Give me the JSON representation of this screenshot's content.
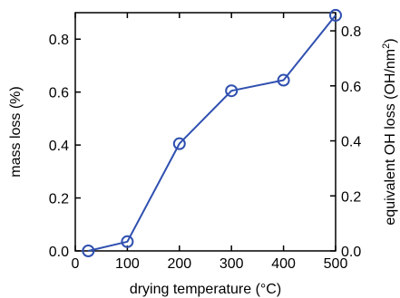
{
  "chart_data": {
    "type": "line",
    "xlabel": "drying temperature (°C)",
    "ylabel_left": "mass loss (%)",
    "ylabel_right": {
      "main": "equivalent OH loss (OH/nm",
      "superscript": "2",
      "closing": ")"
    },
    "xlim": [
      0,
      500
    ],
    "ylim_left": [
      0.0,
      0.9
    ],
    "ylim_right": [
      0.0,
      0.866
    ],
    "x_ticks": [
      0,
      100,
      200,
      300,
      400,
      500
    ],
    "y_left_ticks": [
      "0.0",
      "0.2",
      "0.4",
      "0.6",
      "0.8"
    ],
    "y_right_ticks": [
      "0.0",
      "0.2",
      "0.4",
      "0.6",
      "0.8"
    ],
    "grid": false,
    "series": [
      {
        "x": [
          25,
          100,
          200,
          300,
          400,
          500
        ],
        "y": [
          0.0,
          0.035,
          0.405,
          0.605,
          0.645,
          0.89
        ]
      }
    ],
    "line_color": "#3050b0",
    "marker": "open-circle"
  }
}
